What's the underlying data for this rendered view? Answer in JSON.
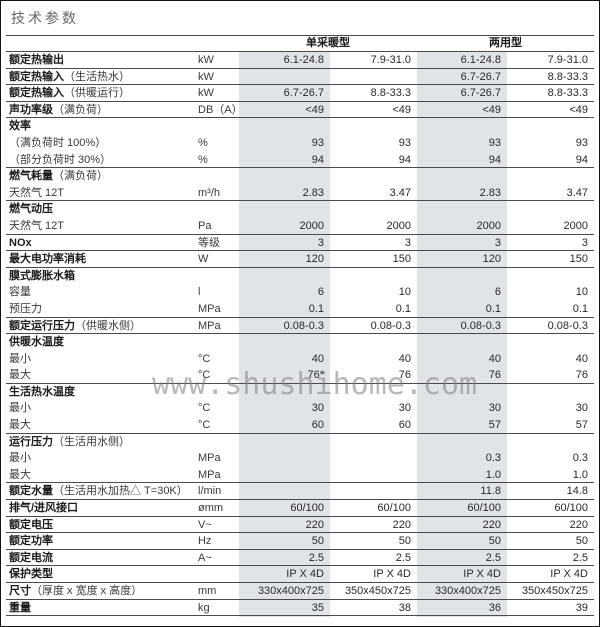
{
  "title": "技术参数",
  "watermark": "www.shushihome.com",
  "colors": {
    "column_shade": "#e0e4e8",
    "rule_line": "#4b4b4d",
    "title_text": "#646467"
  },
  "table": {
    "col_groups": [
      {
        "label": "单采暖型"
      },
      {
        "label": "两用型"
      }
    ],
    "rows": [
      {
        "label": "额定热输出",
        "bold": true,
        "suffix": "",
        "unit": "kW",
        "values": [
          "6.1-24.8",
          "7.9-31.0",
          "6.1-24.8",
          "7.9-31.0"
        ],
        "line": true
      },
      {
        "label": "额定热输入",
        "bold": true,
        "suffix": "（生活热水）",
        "unit": "kW",
        "values": [
          "",
          "",
          "6.7-26.7",
          "8.8-33.3"
        ],
        "line": true
      },
      {
        "label": "额定热输入",
        "bold": true,
        "suffix": "（供暖运行）",
        "unit": "kW",
        "values": [
          "6.7-26.7",
          "8.8-33.3",
          "6.7-26.7",
          "8.8-33.3"
        ],
        "line": true
      },
      {
        "label": "声功率级",
        "bold": true,
        "suffix": "（满负荷）",
        "unit": "DB（A）",
        "values": [
          "<49",
          "<49",
          "<49",
          "<49"
        ],
        "line": true
      },
      {
        "label": "效率",
        "bold": true,
        "suffix": "",
        "unit": "",
        "values": [
          "",
          "",
          "",
          ""
        ],
        "line": false
      },
      {
        "label": "（满负荷时 100%）",
        "bold": false,
        "suffix": "",
        "unit": "%",
        "values": [
          "93",
          "93",
          "93",
          "93"
        ],
        "line": false
      },
      {
        "label": "（部分负荷时 30%）",
        "bold": false,
        "suffix": "",
        "unit": "%",
        "values": [
          "94",
          "94",
          "94",
          "94"
        ],
        "line": true
      },
      {
        "label": "燃气耗量",
        "bold": true,
        "suffix": "（满负荷）",
        "unit": "",
        "values": [
          "",
          "",
          "",
          ""
        ],
        "line": false
      },
      {
        "label": "天然气 12T",
        "bold": false,
        "suffix": "",
        "unit": "m³/h",
        "values": [
          "2.83",
          "3.47",
          "2.83",
          "3.47"
        ],
        "line": true
      },
      {
        "label": "燃气动压",
        "bold": true,
        "suffix": "",
        "unit": "",
        "values": [
          "",
          "",
          "",
          ""
        ],
        "line": false
      },
      {
        "label": "天然气 12T",
        "bold": false,
        "suffix": "",
        "unit": "Pa",
        "values": [
          "2000",
          "2000",
          "2000",
          "2000"
        ],
        "line": true
      },
      {
        "label": "NOx",
        "bold": true,
        "suffix": "",
        "unit": "等级",
        "values": [
          "3",
          "3",
          "3",
          "3"
        ],
        "line": true
      },
      {
        "label": "最大电功率消耗",
        "bold": true,
        "suffix": "",
        "unit": "W",
        "values": [
          "120",
          "150",
          "120",
          "150"
        ],
        "line": true
      },
      {
        "label": "膜式膨胀水箱",
        "bold": true,
        "suffix": "",
        "unit": "",
        "values": [
          "",
          "",
          "",
          ""
        ],
        "line": false
      },
      {
        "label": "容量",
        "bold": false,
        "suffix": "",
        "unit": "l",
        "values": [
          "6",
          "10",
          "6",
          "10"
        ],
        "line": false
      },
      {
        "label": "预压力",
        "bold": false,
        "suffix": "",
        "unit": "MPa",
        "values": [
          "0.1",
          "0.1",
          "0.1",
          "0.1"
        ],
        "line": true
      },
      {
        "label": "额定运行压力",
        "bold": true,
        "suffix": "（供暖水侧）",
        "unit": "MPa",
        "values": [
          "0.08-0.3",
          "0.08-0.3",
          "0.08-0.3",
          "0.08-0.3"
        ],
        "line": true
      },
      {
        "label": "供暖水温度",
        "bold": true,
        "suffix": "",
        "unit": "",
        "values": [
          "",
          "",
          "",
          ""
        ],
        "line": false
      },
      {
        "label": "最小",
        "bold": false,
        "suffix": "",
        "unit": "°C",
        "values": [
          "40",
          "40",
          "40",
          "40"
        ],
        "line": false
      },
      {
        "label": "最大",
        "bold": false,
        "suffix": "",
        "unit": "°C",
        "values": [
          "76*",
          "76",
          "76",
          "76"
        ],
        "line": true
      },
      {
        "label": "生活热水温度",
        "bold": true,
        "suffix": "",
        "unit": "",
        "values": [
          "",
          "",
          "",
          ""
        ],
        "line": false
      },
      {
        "label": "最小",
        "bold": false,
        "suffix": "",
        "unit": "°C",
        "values": [
          "30",
          "30",
          "30",
          "30"
        ],
        "line": false
      },
      {
        "label": "最大",
        "bold": false,
        "suffix": "",
        "unit": "°C",
        "values": [
          "60",
          "60",
          "57",
          "57"
        ],
        "line": true
      },
      {
        "label": "运行压力",
        "bold": true,
        "suffix": "（生活用水侧）",
        "unit": "",
        "values": [
          "",
          "",
          "",
          ""
        ],
        "line": false
      },
      {
        "label": "最小",
        "bold": false,
        "suffix": "",
        "unit": "MPa",
        "values": [
          "",
          "",
          "0.3",
          "0.3"
        ],
        "line": false
      },
      {
        "label": "最大",
        "bold": false,
        "suffix": "",
        "unit": "MPa",
        "values": [
          "",
          "",
          "1.0",
          "1.0"
        ],
        "line": true
      },
      {
        "label": "额定水量",
        "bold": true,
        "suffix": "（生活用水加热△ T=30K）",
        "unit": "l/min",
        "values": [
          "",
          "",
          "11.8",
          "14.8"
        ],
        "line": true
      },
      {
        "label": "排气/进风接口",
        "bold": true,
        "suffix": "",
        "unit": "ømm",
        "values": [
          "60/100",
          "60/100",
          "60/100",
          "60/100"
        ],
        "line": true
      },
      {
        "label": "额定电压",
        "bold": true,
        "suffix": "",
        "unit": "V~",
        "values": [
          "220",
          "220",
          "220",
          "220"
        ],
        "line": true
      },
      {
        "label": "额定功率",
        "bold": true,
        "suffix": "",
        "unit": "Hz",
        "values": [
          "50",
          "50",
          "50",
          "50"
        ],
        "line": true
      },
      {
        "label": "额定电流",
        "bold": true,
        "suffix": "",
        "unit": "A~",
        "values": [
          "2.5",
          "2.5",
          "2.5",
          "2.5"
        ],
        "line": true
      },
      {
        "label": "保护类型",
        "bold": true,
        "suffix": "",
        "unit": "",
        "values": [
          "IP X 4D",
          "IP X 4D",
          "IP X 4D",
          "IP X 4D"
        ],
        "line": true
      },
      {
        "label": "尺寸",
        "bold": true,
        "suffix": "（厚度 x 宽度 x 高度）",
        "unit": "mm",
        "values": [
          "330x400x725",
          "350x450x725",
          "330x400x725",
          "350x450x725"
        ],
        "line": true
      },
      {
        "label": "重量",
        "bold": true,
        "suffix": "",
        "unit": "kg",
        "values": [
          "35",
          "38",
          "36",
          "39"
        ],
        "line": true
      }
    ]
  }
}
